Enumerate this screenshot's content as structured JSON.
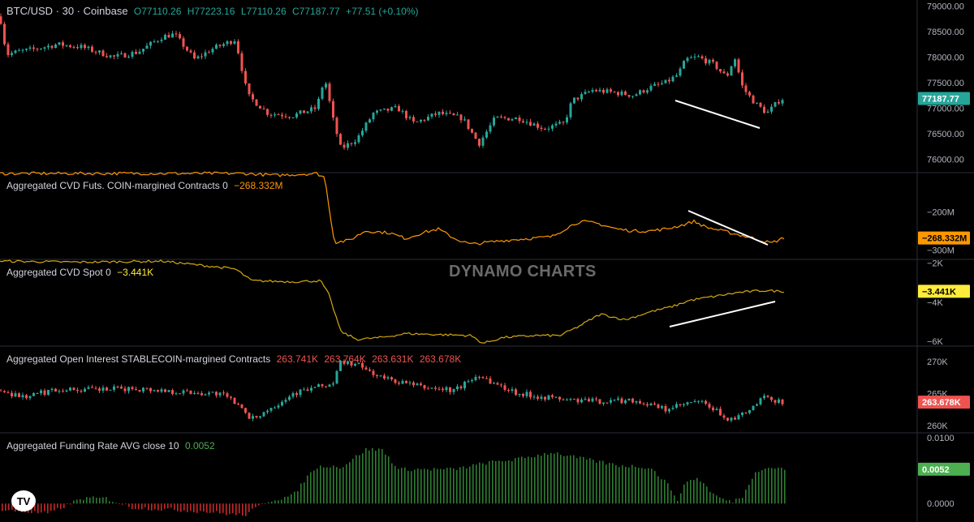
{
  "header": {
    "symbol": "BTC/USD · 30 · Coinbase",
    "open": "O77110.26",
    "high": "H77223.16",
    "low": "L77110.26",
    "close": "C77187.77",
    "change": "+77.51 (+0.10%)"
  },
  "panes": {
    "cvd_futs": {
      "label": "Aggregated CVD Futs. COIN-margined Contracts 0",
      "value": "−268.332M"
    },
    "cvd_spot": {
      "label": "Aggregated CVD Spot 0",
      "value": "−3.441K"
    },
    "oi": {
      "label": "Aggregated Open Interest STABLECOIN-margined Contracts",
      "values": [
        "263.741K",
        "263.764K",
        "263.631K",
        "263.678K"
      ]
    },
    "funding": {
      "label": "Aggregated Funding Rate AVG close 10",
      "value": "0.0052"
    }
  },
  "watermark": "DYNAMO CHARTS",
  "logo": "TV",
  "colors": {
    "up": "#26a69a",
    "down": "#ef5350",
    "orange": "#ff9800",
    "yellow": "#d4a80f",
    "green_bar": "#2e7d32",
    "red_bar": "#c62828",
    "badge_price": "#26a69a"
  },
  "chart_data": [
    {
      "type": "candlestick",
      "title": "BTC/USD · 30 · Coinbase",
      "ylim": [
        75750,
        79120
      ],
      "yticks": [
        "79000.00",
        "78500.00",
        "78000.00",
        "77500.00",
        "77000.00",
        "76500.00",
        "76000.00"
      ],
      "last_value": "77187.77",
      "path": [
        [
          0,
          78800
        ],
        [
          8,
          78050
        ],
        [
          20,
          78100
        ],
        [
          40,
          78150
        ],
        [
          70,
          78250
        ],
        [
          100,
          78200
        ],
        [
          140,
          78000
        ],
        [
          170,
          78100
        ],
        [
          200,
          78400
        ],
        [
          215,
          78450
        ],
        [
          240,
          77950
        ],
        [
          260,
          78150
        ],
        [
          290,
          78350
        ],
        [
          295,
          78000
        ],
        [
          305,
          77250
        ],
        [
          330,
          76900
        ],
        [
          360,
          76850
        ],
        [
          390,
          77000
        ],
        [
          400,
          77600
        ],
        [
          410,
          76800
        ],
        [
          420,
          76200
        ],
        [
          440,
          76400
        ],
        [
          460,
          76900
        ],
        [
          490,
          77000
        ],
        [
          510,
          76700
        ],
        [
          540,
          76900
        ],
        [
          570,
          76800
        ],
        [
          590,
          76300
        ],
        [
          610,
          76800
        ],
        [
          640,
          76800
        ],
        [
          670,
          76600
        ],
        [
          695,
          76700
        ],
        [
          705,
          77150
        ],
        [
          730,
          77350
        ],
        [
          760,
          77300
        ],
        [
          780,
          77250
        ],
        [
          800,
          77400
        ],
        [
          820,
          77500
        ],
        [
          835,
          77650
        ],
        [
          845,
          77950
        ],
        [
          860,
          78000
        ],
        [
          880,
          77850
        ],
        [
          895,
          77600
        ],
        [
          905,
          78000
        ],
        [
          915,
          77400
        ],
        [
          930,
          77100
        ],
        [
          945,
          76900
        ],
        [
          960,
          77150
        ],
        [
          966,
          77200
        ]
      ],
      "annotation_line": "downtrend"
    },
    {
      "type": "line",
      "title": "Aggregated CVD Futs. COIN-margined Contracts 0",
      "yticks": [
        "−200M",
        "−300M"
      ],
      "last_value": "−268.332M",
      "path": [
        [
          0,
          -100
        ],
        [
          140,
          -100
        ],
        [
          200,
          -100
        ],
        [
          260,
          -100
        ],
        [
          300,
          -100
        ],
        [
          340,
          -105
        ],
        [
          390,
          -100
        ],
        [
          400,
          -110
        ],
        [
          412,
          -280
        ],
        [
          430,
          -275
        ],
        [
          450,
          -250
        ],
        [
          480,
          -255
        ],
        [
          500,
          -270
        ],
        [
          520,
          -255
        ],
        [
          540,
          -245
        ],
        [
          560,
          -270
        ],
        [
          580,
          -285
        ],
        [
          600,
          -280
        ],
        [
          620,
          -275
        ],
        [
          650,
          -270
        ],
        [
          680,
          -265
        ],
        [
          700,
          -240
        ],
        [
          715,
          -225
        ],
        [
          735,
          -230
        ],
        [
          760,
          -245
        ],
        [
          780,
          -250
        ],
        [
          800,
          -250
        ],
        [
          820,
          -245
        ],
        [
          840,
          -235
        ],
        [
          855,
          -225
        ],
        [
          870,
          -240
        ],
        [
          890,
          -250
        ],
        [
          910,
          -260
        ],
        [
          930,
          -270
        ],
        [
          950,
          -282
        ],
        [
          966,
          -268
        ]
      ],
      "annotation_line": "downtrend"
    },
    {
      "type": "line",
      "title": "Aggregated CVD Spot 0",
      "yticks": [
        "−2K",
        "−4K",
        "−6K"
      ],
      "last_value": "−3.441K",
      "path": [
        [
          0,
          -1.9
        ],
        [
          100,
          -1.95
        ],
        [
          200,
          -1.9
        ],
        [
          290,
          -2.3
        ],
        [
          310,
          -2.9
        ],
        [
          360,
          -2.95
        ],
        [
          395,
          -2.9
        ],
        [
          405,
          -3.6
        ],
        [
          420,
          -5.5
        ],
        [
          440,
          -5.9
        ],
        [
          470,
          -5.8
        ],
        [
          500,
          -5.6
        ],
        [
          540,
          -5.65
        ],
        [
          580,
          -5.7
        ],
        [
          595,
          -6.1
        ],
        [
          620,
          -5.8
        ],
        [
          660,
          -5.7
        ],
        [
          690,
          -5.7
        ],
        [
          710,
          -5.3
        ],
        [
          740,
          -4.6
        ],
        [
          770,
          -4.9
        ],
        [
          800,
          -4.5
        ],
        [
          830,
          -4.2
        ],
        [
          850,
          -3.9
        ],
        [
          880,
          -3.7
        ],
        [
          910,
          -3.5
        ],
        [
          940,
          -3.4
        ],
        [
          966,
          -3.44
        ]
      ],
      "annotation_line": "uptrend"
    },
    {
      "type": "candlestick",
      "title": "Aggregated Open Interest STABLECOIN-margined Contracts",
      "yticks": [
        "270K",
        "265K",
        "260K"
      ],
      "last_value": "263.678K",
      "path": [
        [
          0,
          265.5
        ],
        [
          30,
          264.5
        ],
        [
          70,
          265.7
        ],
        [
          120,
          265.6
        ],
        [
          170,
          265.8
        ],
        [
          220,
          265.3
        ],
        [
          270,
          265.0
        ],
        [
          300,
          263.0
        ],
        [
          305,
          260.6
        ],
        [
          330,
          262.5
        ],
        [
          360,
          265.0
        ],
        [
          390,
          266.0
        ],
        [
          410,
          266.5
        ],
        [
          420,
          270.0
        ],
        [
          440,
          269.5
        ],
        [
          470,
          267.5
        ],
        [
          520,
          266.0
        ],
        [
          560,
          265.5
        ],
        [
          590,
          268.0
        ],
        [
          610,
          266.5
        ],
        [
          640,
          265.0
        ],
        [
          700,
          264.0
        ],
        [
          740,
          263.8
        ],
        [
          780,
          264.0
        ],
        [
          820,
          262.5
        ],
        [
          860,
          263.8
        ],
        [
          880,
          262.5
        ],
        [
          900,
          260.8
        ],
        [
          920,
          262.0
        ],
        [
          940,
          264.3
        ],
        [
          966,
          263.7
        ]
      ]
    },
    {
      "type": "bar",
      "title": "Aggregated Funding Rate AVG close 10",
      "yticks": [
        "0.0100",
        "0.0000"
      ],
      "last_value": "0.0052",
      "path": [
        [
          0,
          -0.001
        ],
        [
          60,
          -0.0015
        ],
        [
          100,
          0.0008
        ],
        [
          130,
          0.0008
        ],
        [
          160,
          -0.0006
        ],
        [
          250,
          -0.0012
        ],
        [
          300,
          -0.0018
        ],
        [
          330,
          0.0004
        ],
        [
          360,
          0.0012
        ],
        [
          385,
          0.0052
        ],
        [
          400,
          0.0058
        ],
        [
          420,
          0.0055
        ],
        [
          450,
          0.0082
        ],
        [
          470,
          0.0082
        ],
        [
          490,
          0.0052
        ],
        [
          560,
          0.0052
        ],
        [
          600,
          0.0062
        ],
        [
          640,
          0.0068
        ],
        [
          680,
          0.0078
        ],
        [
          700,
          0.0072
        ],
        [
          760,
          0.0058
        ],
        [
          800,
          0.0055
        ],
        [
          820,
          0.0032
        ],
        [
          835,
          0.0005
        ],
        [
          845,
          0.0035
        ],
        [
          860,
          0.0038
        ],
        [
          880,
          0.0012
        ],
        [
          900,
          0.0002
        ],
        [
          915,
          0.0012
        ],
        [
          930,
          0.005
        ],
        [
          950,
          0.0055
        ],
        [
          966,
          0.0052
        ]
      ]
    }
  ]
}
